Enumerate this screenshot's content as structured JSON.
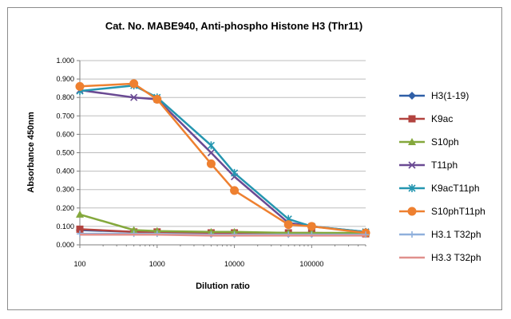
{
  "chart_data": {
    "type": "line",
    "title": "Cat. No. MABE940, Anti-phospho Histone H3 (Thr11)",
    "xlabel": "Dilution ratio",
    "ylabel": "Absorbance 450nm",
    "x_scale": "log",
    "xlim": [
      100,
      500000
    ],
    "ylim": [
      0,
      1
    ],
    "x_ticks": [
      100,
      1000,
      10000,
      100000
    ],
    "x_tick_labels": [
      "100",
      "1000",
      "10000",
      "100000"
    ],
    "y_ticks": [
      0,
      0.1,
      0.2,
      0.3,
      0.4,
      0.5,
      0.6,
      0.7,
      0.8,
      0.9,
      1.0
    ],
    "y_tick_labels": [
      "0.000",
      "0.100",
      "0.200",
      "0.300",
      "0.400",
      "0.500",
      "0.600",
      "0.700",
      "0.800",
      "0.900",
      "1.000"
    ],
    "grid": "horizontal",
    "legend_position": "right",
    "x": [
      100,
      500,
      1000,
      5000,
      10000,
      50000,
      100000,
      500000
    ],
    "series": [
      {
        "name": "H3(1-19)",
        "color": "#2f5fa7",
        "marker": "diamond",
        "values": [
          0.08,
          0.07,
          0.07,
          0.06,
          0.06,
          0.06,
          0.06,
          0.06
        ]
      },
      {
        "name": "K9ac",
        "color": "#b2433f",
        "marker": "square",
        "values": [
          0.085,
          0.07,
          0.07,
          0.065,
          0.065,
          0.065,
          0.065,
          0.06
        ]
      },
      {
        "name": "S10ph",
        "color": "#84a83c",
        "marker": "triangle",
        "values": [
          0.165,
          0.08,
          0.075,
          0.07,
          0.07,
          0.065,
          0.065,
          0.065
        ]
      },
      {
        "name": "T11ph",
        "color": "#6a4a93",
        "marker": "x",
        "values": [
          0.84,
          0.8,
          0.79,
          0.5,
          0.37,
          0.12,
          0.1,
          0.07
        ]
      },
      {
        "name": "K9acT11ph",
        "color": "#2596b0",
        "marker": "asterisk",
        "values": [
          0.835,
          0.865,
          0.8,
          0.54,
          0.39,
          0.14,
          0.1,
          0.07
        ]
      },
      {
        "name": "S10phT11ph",
        "color": "#ee8030",
        "marker": "circle",
        "values": [
          0.86,
          0.875,
          0.79,
          0.44,
          0.295,
          0.11,
          0.1,
          0.065
        ]
      },
      {
        "name": "H3.1 T32ph",
        "color": "#8fb0dc",
        "marker": "plus",
        "values": [
          0.06,
          0.06,
          0.06,
          0.055,
          0.055,
          0.055,
          0.055,
          0.055
        ]
      },
      {
        "name": "H3.3 T32ph",
        "color": "#e0908c",
        "marker": "none",
        "values": [
          0.055,
          0.055,
          0.055,
          0.05,
          0.05,
          0.05,
          0.05,
          0.05
        ]
      }
    ]
  }
}
